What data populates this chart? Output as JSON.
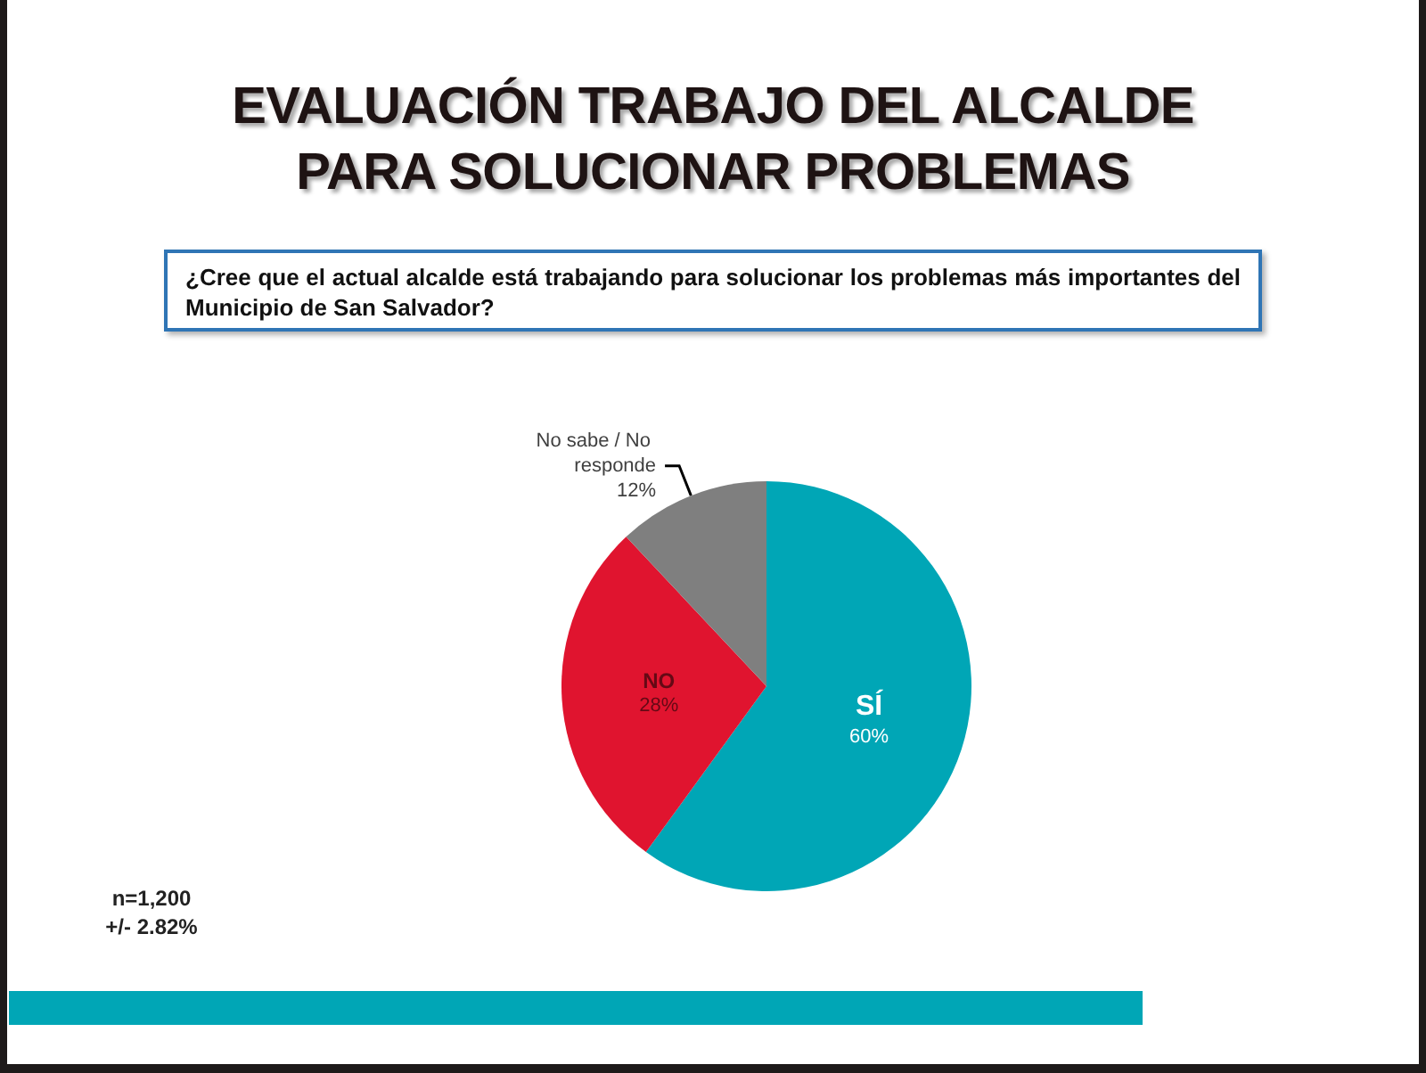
{
  "chart_data": {
    "type": "pie",
    "title": "EVALUACIÓN TRABAJO DEL ALCALDE PARA SOLUCIONAR PROBLEMAS",
    "subtitle": "¿Cree que el actual alcalde está trabajando para solucionar los problemas más importantes del Municipio de San Salvador?",
    "categories": [
      "SÍ",
      "NO",
      "No sabe / No responde"
    ],
    "values": [
      60,
      28,
      12
    ],
    "value_labels": [
      "60%",
      "28%",
      "12%"
    ],
    "colors": [
      "#00a6b6",
      "#e0142f",
      "#7f7f7f"
    ],
    "annotations": [
      "n=1,200",
      "+/- 2.82%"
    ]
  }
}
